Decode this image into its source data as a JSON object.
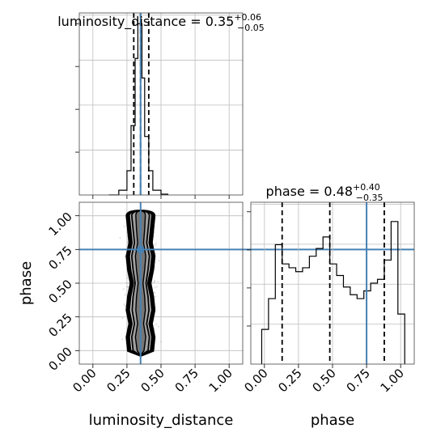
{
  "chart_data": {
    "type": "corner",
    "parameters": [
      "luminosity_distance",
      "phase"
    ],
    "truths": {
      "luminosity_distance": 0.35,
      "phase": 0.75
    },
    "truth_color": "#4682b4",
    "hist_color": "#000000",
    "range": [
      -0.1,
      1.1
    ],
    "ticks": [
      0.0,
      0.25,
      0.5,
      0.75,
      1.0
    ],
    "tick_labels": [
      "0.00",
      "0.25",
      "0.50",
      "0.75",
      "1.00"
    ],
    "grid": true,
    "histograms": [
      {
        "parameter": "luminosity_distance",
        "title_prefix": "luminosity_distance = ",
        "median": "0.35",
        "plus": "+0.06",
        "minus": "−0.05",
        "quantiles": [
          0.3,
          0.35,
          0.41
        ],
        "bin_edges": [
          0.12,
          0.19,
          0.25,
          0.28,
          0.31,
          0.33,
          0.345,
          0.36,
          0.38,
          0.41,
          0.44,
          0.5,
          0.55
        ],
        "counts": [
          1,
          110,
          560,
          1600,
          3150,
          3950,
          3950,
          2700,
          1350,
          560,
          110,
          20
        ],
        "ymax": 4200
      },
      {
        "parameter": "phase",
        "title_prefix": "phase = ",
        "median": "0.48",
        "plus": "+0.40",
        "minus": "−0.35",
        "quantiles": [
          0.13,
          0.48,
          0.88
        ],
        "bin_edges": [
          -0.02,
          0.03,
          0.08,
          0.13,
          0.18,
          0.23,
          0.28,
          0.33,
          0.38,
          0.43,
          0.48,
          0.53,
          0.58,
          0.63,
          0.68,
          0.73,
          0.78,
          0.83,
          0.88,
          0.93,
          0.98,
          1.03
        ],
        "counts": [
          0.9,
          1.7,
          3.1,
          2.6,
          2.5,
          2.4,
          2.5,
          2.8,
          3.0,
          3.3,
          2.6,
          2.3,
          2.0,
          1.8,
          1.7,
          1.9,
          2.1,
          2.2,
          2.7,
          3.7,
          1.3
        ],
        "ymax": 4.2
      }
    ],
    "scatter_2d": {
      "x": "luminosity_distance",
      "y": "phase",
      "x_center": 0.35,
      "x_spread": 0.04,
      "y_range": [
        0.0,
        1.0
      ],
      "point_count": 2500,
      "contours": [
        {
          "half_width": [
            0.09,
            0.1,
            0.08,
            0.1,
            0.09,
            0.07,
            0.09,
            0.1,
            0.08,
            0.09,
            0.1
          ],
          "width": 3.2
        },
        {
          "half_width": [
            0.075,
            0.085,
            0.065,
            0.085,
            0.075,
            0.055,
            0.075,
            0.085,
            0.065,
            0.075,
            0.085
          ],
          "width": 2.4
        },
        {
          "half_width": [
            0.055,
            0.065,
            0.045,
            0.062,
            0.055,
            0.04,
            0.055,
            0.065,
            0.045,
            0.055,
            0.065
          ],
          "width": 1.8
        },
        {
          "half_width": [
            0.025,
            0.038,
            0.022,
            0.035,
            0.03,
            0.018,
            0.03,
            0.038,
            0.022,
            0.03,
            0.035
          ],
          "width": 1.4
        }
      ]
    },
    "axis_labels": {
      "x_bottom_left": "luminosity_distance",
      "x_bottom_right": "phase",
      "y_left": "phase"
    }
  }
}
